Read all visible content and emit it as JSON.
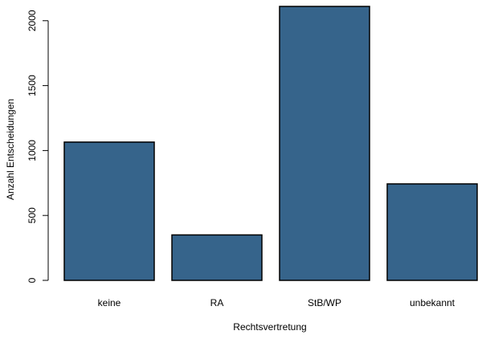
{
  "chart_data": {
    "type": "bar",
    "categories": [
      "keine",
      "RA",
      "StB/WP",
      "unbekannt"
    ],
    "values": [
      1065,
      350,
      2110,
      743
    ],
    "xlabel": "Rechtsvertretung",
    "ylabel": "Anzahl Entscheidungen",
    "ylim": [
      0,
      2110
    ],
    "yticks": [
      0,
      500,
      1000,
      1500,
      2000
    ],
    "grid": false,
    "legend": "none",
    "bar_color": "#36648B",
    "bar_edge_color": "#000000"
  }
}
